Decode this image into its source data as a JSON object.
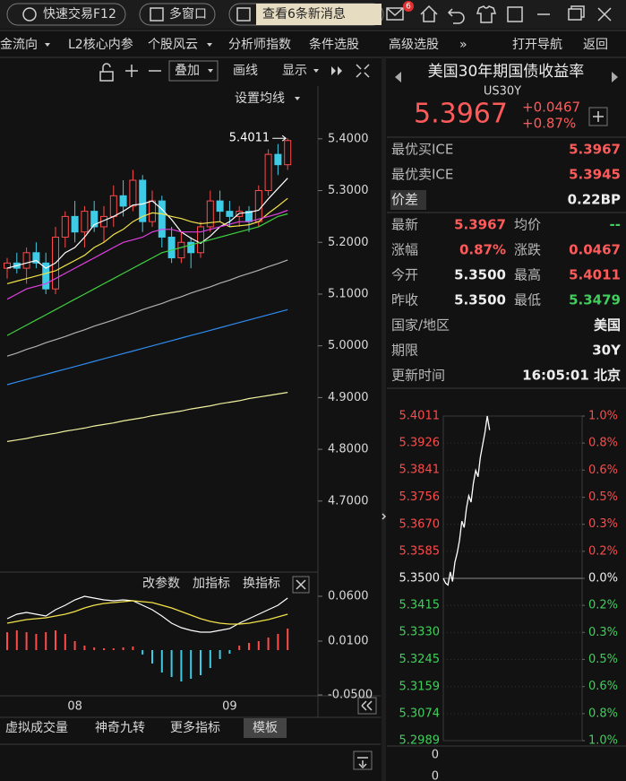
{
  "toolbar": {
    "quick_trade": "快速交易F12",
    "multi_window": "多窗口",
    "messages": "查看6条新消息",
    "badge": "6"
  },
  "menu": [
    "金流向",
    "L2核心内参",
    "个股风云",
    "分析师指数",
    "条件选股",
    "高级选股",
    "»",
    "打开导航",
    "返回"
  ],
  "chart_tools": [
    "叠加",
    "画线",
    "显示"
  ],
  "ma_setting": "设置均线",
  "indicator_tools": [
    "改参数",
    "加指标",
    "换指标"
  ],
  "tabs": [
    "虚拟成交量",
    "神奇九转",
    "更多指标",
    "模板"
  ],
  "quote": {
    "title": "美国30年期国债收益率",
    "code": "US30Y",
    "price": "5.3967",
    "change": "+0.0467",
    "change_pct": "+0.87%",
    "book": [
      [
        "最优买ICE",
        "5.3967"
      ],
      [
        "最优卖ICE",
        "5.3945"
      ],
      [
        "价差",
        "0.22BP"
      ]
    ],
    "stats": [
      [
        "最新",
        "5.3967",
        "均价",
        "--"
      ],
      [
        "涨幅",
        "0.87%",
        "涨跌",
        "0.0467"
      ],
      [
        "今开",
        "5.3500",
        "最高",
        "5.4011"
      ],
      [
        "昨收",
        "5.3500",
        "最低",
        "5.3479"
      ]
    ],
    "info": [
      [
        "国家/地区",
        "美国"
      ],
      [
        "期限",
        "30Y"
      ],
      [
        "更新时间",
        "16:05:01 北京"
      ]
    ]
  },
  "volume_ticks": [
    "0",
    "0"
  ],
  "chart_data": [
    {
      "type": "candlestick",
      "annotation": "5.4011",
      "categories": [
        null,
        null,
        null,
        null,
        null,
        null,
        null,
        "08",
        null,
        null,
        null,
        null,
        null,
        null,
        null,
        null,
        null,
        null,
        null,
        null,
        null,
        null,
        null,
        "09",
        null,
        null,
        null,
        null,
        null,
        null
      ],
      "open": [
        5.15,
        5.16,
        5.15,
        5.18,
        5.16,
        5.11,
        5.21,
        5.25,
        5.22,
        5.26,
        5.23,
        5.25,
        5.29,
        5.27,
        5.32,
        5.24,
        5.28,
        5.21,
        5.17,
        5.2,
        5.18,
        5.23,
        5.28,
        5.26,
        5.25,
        5.26,
        5.24,
        5.3,
        5.37,
        5.35
      ],
      "high": [
        5.17,
        5.18,
        5.19,
        5.2,
        5.18,
        5.23,
        5.26,
        5.28,
        5.27,
        5.28,
        5.27,
        5.31,
        5.32,
        5.34,
        5.33,
        5.3,
        5.29,
        5.23,
        5.22,
        5.21,
        5.24,
        5.3,
        5.3,
        5.28,
        5.27,
        5.27,
        5.31,
        5.38,
        5.39,
        5.4011
      ],
      "low": [
        5.13,
        5.14,
        5.12,
        5.15,
        5.1,
        5.1,
        5.19,
        5.2,
        5.19,
        5.22,
        5.2,
        5.23,
        5.25,
        5.26,
        5.22,
        5.23,
        5.19,
        5.16,
        5.16,
        5.15,
        5.17,
        5.22,
        5.24,
        5.23,
        5.23,
        5.22,
        5.23,
        5.29,
        5.33,
        5.34
      ],
      "close": [
        5.16,
        5.15,
        5.18,
        5.16,
        5.11,
        5.21,
        5.25,
        5.22,
        5.26,
        5.23,
        5.25,
        5.29,
        5.27,
        5.32,
        5.24,
        5.28,
        5.21,
        5.17,
        5.2,
        5.18,
        5.23,
        5.28,
        5.26,
        5.25,
        5.26,
        5.24,
        5.3,
        5.37,
        5.35,
        5.3967
      ],
      "up_color": "#ff4a4a",
      "down_color": "#3ecbe6",
      "series": [
        {
          "color": "#ffffff",
          "values": [
            5.15,
            5.155,
            5.16,
            5.165,
            5.15,
            5.16,
            5.18,
            5.19,
            5.21,
            5.234,
            5.242,
            5.25,
            5.26,
            5.272,
            5.274,
            5.28,
            5.264,
            5.244,
            5.22,
            5.208,
            5.198,
            5.212,
            5.23,
            5.24,
            5.256,
            5.258,
            5.262,
            5.284,
            5.304,
            5.324
          ]
        },
        {
          "color": "#f2e24a",
          "values": [
            5.12,
            5.125,
            5.13,
            5.135,
            5.14,
            5.145,
            5.155,
            5.165,
            5.175,
            5.19,
            5.2,
            5.215,
            5.225,
            5.24,
            5.25,
            5.257,
            5.255,
            5.25,
            5.246,
            5.24,
            5.236,
            5.238,
            5.24,
            5.23,
            5.232,
            5.234,
            5.24,
            5.256,
            5.27,
            5.285
          ]
        },
        {
          "color": "#e040e0",
          "values": [
            5.09,
            5.1,
            5.11,
            5.115,
            5.12,
            5.13,
            5.14,
            5.15,
            5.16,
            5.17,
            5.18,
            5.19,
            5.2,
            5.205,
            5.21,
            5.22,
            5.225,
            5.225,
            5.22,
            5.22,
            5.22,
            5.225,
            5.23,
            5.235,
            5.24,
            5.24,
            5.245,
            5.25,
            5.255,
            5.262
          ]
        },
        {
          "color": "#40d040",
          "values": [
            5.02,
            5.03,
            5.04,
            5.05,
            5.06,
            5.07,
            5.08,
            5.09,
            5.1,
            5.11,
            5.12,
            5.13,
            5.14,
            5.15,
            5.16,
            5.17,
            5.18,
            5.185,
            5.19,
            5.195,
            5.2,
            5.205,
            5.21,
            5.215,
            5.22,
            5.225,
            5.23,
            5.24,
            5.25,
            5.255
          ]
        },
        {
          "color": "#b0b0b0",
          "values": [
            4.98,
            4.986,
            4.993,
            4.999,
            5.006,
            5.012,
            5.018,
            5.025,
            5.031,
            5.038,
            5.044,
            5.05,
            5.057,
            5.063,
            5.07,
            5.076,
            5.082,
            5.089,
            5.095,
            5.102,
            5.108,
            5.114,
            5.121,
            5.127,
            5.134,
            5.14,
            5.146,
            5.153,
            5.159,
            5.166
          ]
        },
        {
          "color": "#2f8cf0",
          "values": [
            4.925,
            4.93,
            4.935,
            4.94,
            4.945,
            4.95,
            4.955,
            4.96,
            4.965,
            4.97,
            4.975,
            4.98,
            4.985,
            4.99,
            4.995,
            5.0,
            5.005,
            5.01,
            5.015,
            5.02,
            5.025,
            5.03,
            5.035,
            5.04,
            5.045,
            5.05,
            5.055,
            5.06,
            5.065,
            5.07
          ]
        },
        {
          "color": "#f0f0a0",
          "values": [
            4.815,
            4.818,
            4.821,
            4.825,
            4.828,
            4.831,
            4.835,
            4.838,
            4.841,
            4.845,
            4.848,
            4.851,
            4.855,
            4.858,
            4.861,
            4.865,
            4.868,
            4.871,
            4.874,
            4.878,
            4.881,
            4.884,
            4.888,
            4.891,
            4.894,
            4.898,
            4.901,
            4.904,
            4.907,
            4.91
          ]
        }
      ],
      "ylim": [
        4.568,
        5.495
      ],
      "yticks": [
        {
          "value": 5.4,
          "label": "5.4000"
        },
        {
          "value": 5.3,
          "label": "5.3000"
        },
        {
          "value": 5.2,
          "label": "5.2000"
        },
        {
          "value": 5.1,
          "label": "5.1000"
        },
        {
          "value": 5.0,
          "label": "5.0000"
        },
        {
          "value": 4.9,
          "label": "4.9000"
        },
        {
          "value": 4.8,
          "label": "4.8000"
        },
        {
          "value": 4.7,
          "label": "4.7000"
        }
      ]
    },
    {
      "type": "macd",
      "up_color": "#ff4a4a",
      "down_color": "#3ecbe6",
      "values": [
        0.02,
        0.022,
        0.02,
        0.018,
        0.02,
        0.022,
        0.018,
        0.01,
        0.005,
        0.003,
        0.002,
        0.002,
        0.003,
        0.004,
        -0.005,
        -0.015,
        -0.025,
        -0.03,
        -0.035,
        -0.032,
        -0.028,
        -0.02,
        -0.01,
        -0.004,
        0.005,
        0.008,
        0.01,
        0.014,
        0.018,
        0.024
      ],
      "series": [
        {
          "color": "#ffffff",
          "values": [
            0.035,
            0.04,
            0.042,
            0.04,
            0.038,
            0.045,
            0.05,
            0.056,
            0.06,
            0.058,
            0.056,
            0.055,
            0.056,
            0.055,
            0.05,
            0.045,
            0.038,
            0.03,
            0.025,
            0.022,
            0.02,
            0.02,
            0.022,
            0.024,
            0.03,
            0.035,
            0.04,
            0.045,
            0.05,
            0.058
          ]
        },
        {
          "color": "#f2e24a",
          "values": [
            0.03,
            0.032,
            0.034,
            0.035,
            0.036,
            0.038,
            0.04,
            0.043,
            0.047,
            0.05,
            0.052,
            0.053,
            0.054,
            0.055,
            0.054,
            0.053,
            0.05,
            0.047,
            0.043,
            0.039,
            0.035,
            0.032,
            0.03,
            0.029,
            0.029,
            0.03,
            0.032,
            0.034,
            0.037,
            0.04
          ]
        }
      ],
      "ylim": [
        -0.055,
        0.075
      ],
      "yticks": [
        {
          "value": 0.06,
          "label": "0.0600"
        },
        {
          "value": 0.01,
          "label": "0.0100"
        },
        {
          "value": -0.05,
          "label": "-0.0500"
        }
      ]
    },
    {
      "type": "line",
      "color": "#ffffff",
      "grid": true,
      "up_color": "#ff4a4a",
      "down_color": "#3fcf5a",
      "values": [
        5.35,
        5.3485,
        5.3479,
        5.352,
        5.349,
        5.355,
        5.358,
        5.362,
        5.368,
        5.366,
        5.372,
        5.376,
        5.374,
        5.38,
        5.384,
        5.382,
        5.388,
        5.392,
        5.396,
        5.4011,
        5.3967
      ],
      "xlim": [
        0,
        60
      ],
      "ylim": [
        5.2989,
        5.4011
      ],
      "yticks": [
        5.4011,
        5.3926,
        5.3841,
        5.3756,
        {
          "value": 5.367,
          "label": "5.3670"
        },
        5.3585,
        {
          "value": 5.35,
          "label": "5.3500"
        },
        5.3415,
        {
          "value": 5.333,
          "label": "5.3330"
        },
        5.3245,
        5.3159,
        5.3074,
        5.2989
      ],
      "y2lim": [
        -0.955,
        0.955
      ],
      "y2ticks": [
        {
          "value": 0.955,
          "label": "1.0%"
        },
        {
          "value": 0.796,
          "label": "0.8%"
        },
        {
          "value": 0.637,
          "label": "0.6%"
        },
        {
          "value": 0.477,
          "label": "0.5%"
        },
        {
          "value": 0.318,
          "label": "0.3%"
        },
        {
          "value": 0.159,
          "label": "0.2%"
        },
        {
          "value": 0,
          "label": "0.0%"
        },
        {
          "value": -0.159,
          "label": "0.2%"
        },
        {
          "value": -0.318,
          "label": "0.3%"
        },
        {
          "value": -0.477,
          "label": "0.5%"
        },
        {
          "value": -0.637,
          "label": "0.6%"
        },
        {
          "value": -0.796,
          "label": "0.8%"
        },
        {
          "value": -0.955,
          "label": "1.0%"
        }
      ]
    }
  ]
}
